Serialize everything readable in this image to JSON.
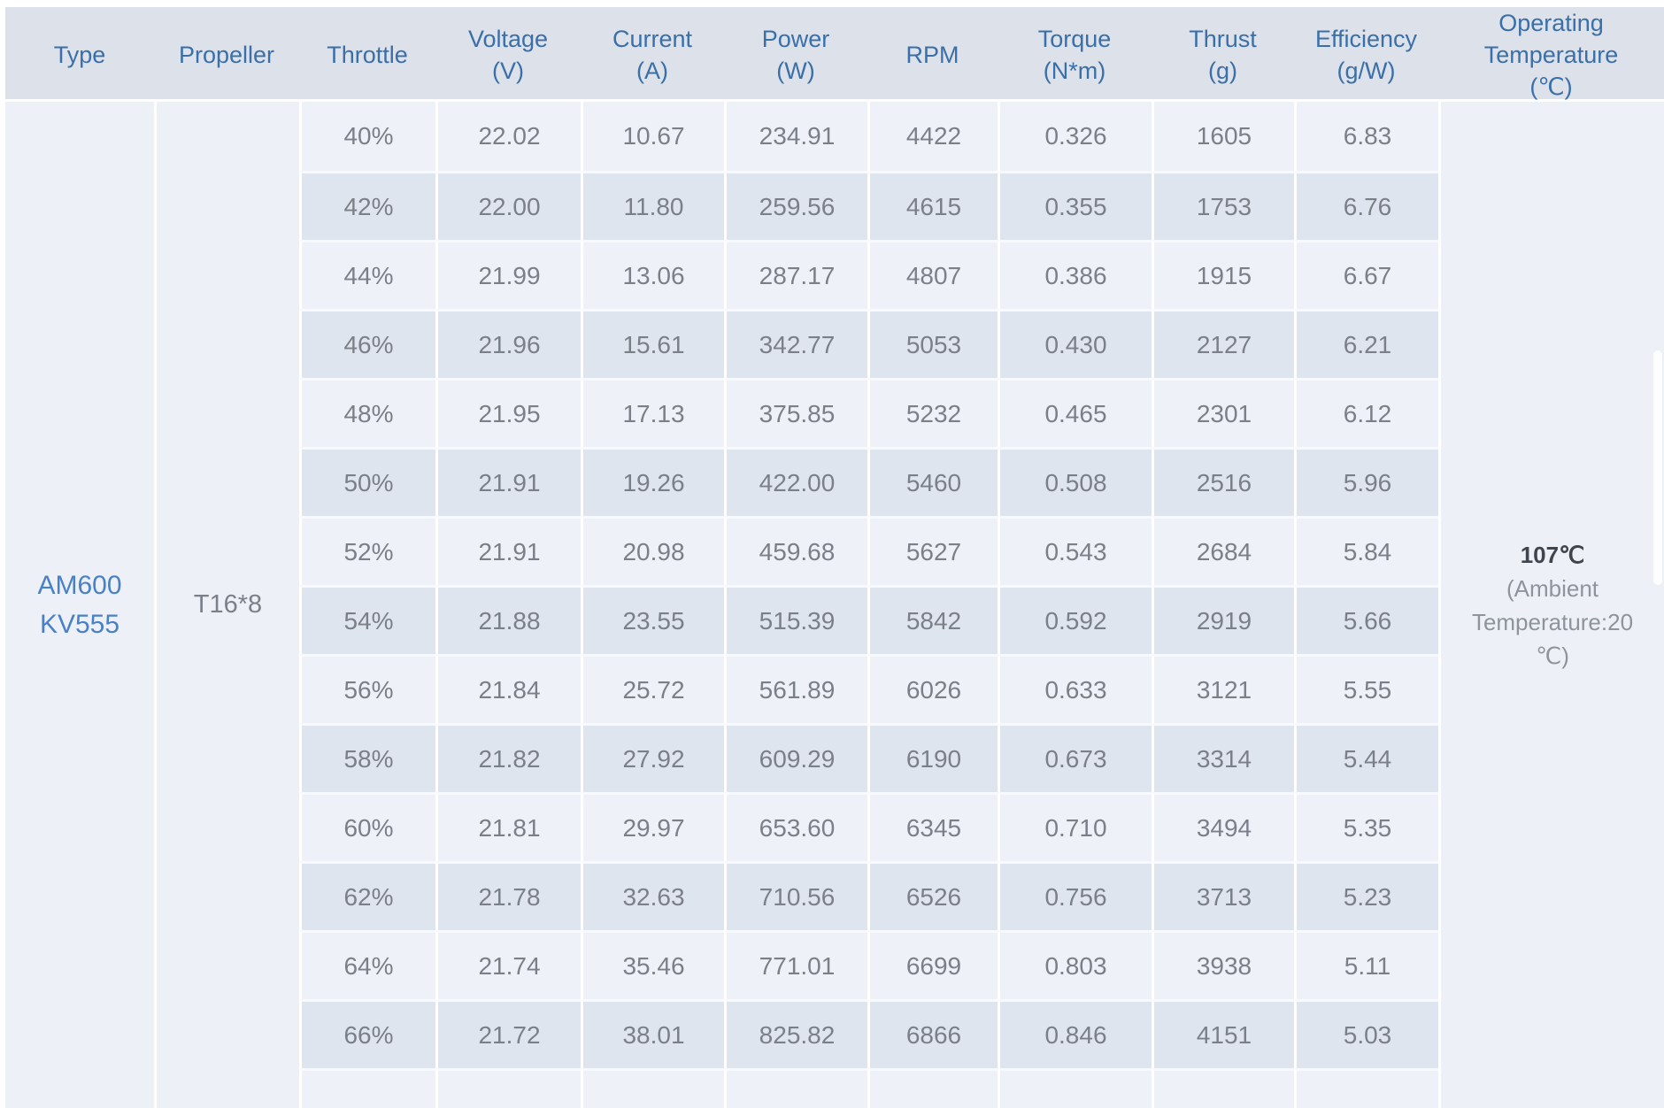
{
  "chart_data": {
    "type": "table",
    "columns": [
      "Type",
      "Propeller",
      "Throttle",
      "Voltage\n(V)",
      "Current\n(A)",
      "Power\n(W)",
      "RPM",
      "Torque\n(N*m)",
      "Thrust\n(g)",
      "Efficiency\n(g/W)",
      "Operating\nTemperature\n(℃)"
    ],
    "motor_type": "AM600\nKV555",
    "propeller": "T16*8",
    "operating_temperature": {
      "value": "107℃",
      "note": "(Ambient Temperature:20 ℃)"
    },
    "rows": [
      [
        "40%",
        "22.02",
        "10.67",
        "234.91",
        "4422",
        "0.326",
        "1605",
        "6.83"
      ],
      [
        "42%",
        "22.00",
        "11.80",
        "259.56",
        "4615",
        "0.355",
        "1753",
        "6.76"
      ],
      [
        "44%",
        "21.99",
        "13.06",
        "287.17",
        "4807",
        "0.386",
        "1915",
        "6.67"
      ],
      [
        "46%",
        "21.96",
        "15.61",
        "342.77",
        "5053",
        "0.430",
        "2127",
        "6.21"
      ],
      [
        "48%",
        "21.95",
        "17.13",
        "375.85",
        "5232",
        "0.465",
        "2301",
        "6.12"
      ],
      [
        "50%",
        "21.91",
        "19.26",
        "422.00",
        "5460",
        "0.508",
        "2516",
        "5.96"
      ],
      [
        "52%",
        "21.91",
        "20.98",
        "459.68",
        "5627",
        "0.543",
        "2684",
        "5.84"
      ],
      [
        "54%",
        "21.88",
        "23.55",
        "515.39",
        "5842",
        "0.592",
        "2919",
        "5.66"
      ],
      [
        "56%",
        "21.84",
        "25.72",
        "561.89",
        "6026",
        "0.633",
        "3121",
        "5.55"
      ],
      [
        "58%",
        "21.82",
        "27.92",
        "609.29",
        "6190",
        "0.673",
        "3314",
        "5.44"
      ],
      [
        "60%",
        "21.81",
        "29.97",
        "653.60",
        "6345",
        "0.710",
        "3494",
        "5.35"
      ],
      [
        "62%",
        "21.78",
        "32.63",
        "710.56",
        "6526",
        "0.756",
        "3713",
        "5.23"
      ],
      [
        "64%",
        "21.74",
        "35.46",
        "771.01",
        "6699",
        "0.803",
        "3938",
        "5.11"
      ],
      [
        "66%",
        "21.72",
        "38.01",
        "825.82",
        "6866",
        "0.846",
        "4151",
        "5.03"
      ]
    ]
  },
  "colors": {
    "header_bg": "#dce1ea",
    "header_text": "#3a6fa8",
    "row_light": "#eef1f7",
    "row_dark": "#dfe5ee",
    "merged_bg": "#edf1f7",
    "data_text": "#7b7f88",
    "type_text": "#4a80c6",
    "temp_value_text": "#40444d",
    "temp_note_text": "#8e939c"
  }
}
